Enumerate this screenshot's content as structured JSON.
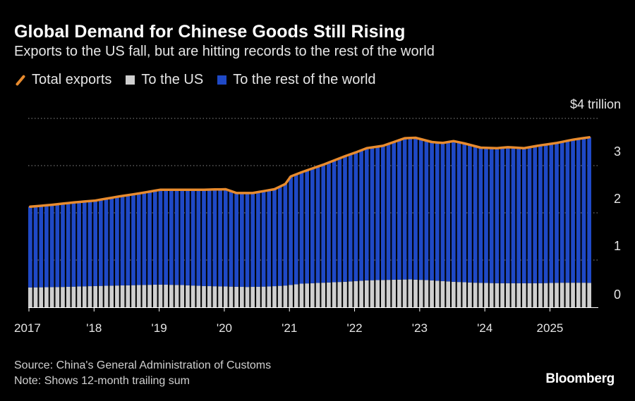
{
  "header": {
    "title": "Global Demand for Chinese Goods Still Rising",
    "subtitle": "Exports to the US fall, but are hitting records to the rest of the world"
  },
  "legend": [
    {
      "label": "Total exports",
      "color": "#e88b2e",
      "kind": "line"
    },
    {
      "label": "To the US",
      "color": "#cfcfcf",
      "kind": "bar"
    },
    {
      "label": "To the rest of the world",
      "color": "#1f49c6",
      "kind": "bar"
    }
  ],
  "footer": {
    "source": "Source: China's General Administration of Customs",
    "note": "Note: Shows 12-month trailing sum",
    "brand": "Bloomberg"
  },
  "chart_data": {
    "type": "bar",
    "stacked": true,
    "unit_label": "$4 trillion",
    "ylim": [
      0,
      4
    ],
    "y_ticks": [
      {
        "value": 0,
        "label": "0"
      },
      {
        "value": 1,
        "label": "1"
      },
      {
        "value": 2,
        "label": "2"
      },
      {
        "value": 3,
        "label": "3"
      },
      {
        "value": 4,
        "label": "$4 trillion"
      }
    ],
    "x_ticks": [
      "2017",
      "'18",
      "'19",
      "'20",
      "'21",
      "'22",
      "'23",
      "'24",
      "2025"
    ],
    "grid": true,
    "start_month": "2017-01",
    "end_month": "2025-08",
    "anchors": {
      "total": [
        [
          0,
          2.13
        ],
        [
          4,
          2.17
        ],
        [
          8,
          2.22
        ],
        [
          12,
          2.26
        ],
        [
          16,
          2.34
        ],
        [
          20,
          2.41
        ],
        [
          24,
          2.49
        ],
        [
          28,
          2.49
        ],
        [
          32,
          2.49
        ],
        [
          36,
          2.5
        ],
        [
          38,
          2.42
        ],
        [
          41,
          2.42
        ],
        [
          45,
          2.5
        ],
        [
          47,
          2.61
        ],
        [
          48,
          2.77
        ],
        [
          50,
          2.86
        ],
        [
          54,
          3.02
        ],
        [
          58,
          3.2
        ],
        [
          60,
          3.28
        ],
        [
          62,
          3.37
        ],
        [
          65,
          3.42
        ],
        [
          67,
          3.5
        ],
        [
          69,
          3.58
        ],
        [
          71,
          3.59
        ],
        [
          74,
          3.5
        ],
        [
          76,
          3.48
        ],
        [
          78,
          3.52
        ],
        [
          80,
          3.47
        ],
        [
          83,
          3.38
        ],
        [
          86,
          3.37
        ],
        [
          88,
          3.39
        ],
        [
          91,
          3.37
        ],
        [
          94,
          3.43
        ],
        [
          97,
          3.48
        ],
        [
          100,
          3.55
        ],
        [
          103,
          3.6
        ],
        [
          106,
          3.66
        ],
        [
          107,
          3.7
        ]
      ],
      "us": [
        [
          0,
          0.42
        ],
        [
          6,
          0.43
        ],
        [
          12,
          0.45
        ],
        [
          16,
          0.46
        ],
        [
          20,
          0.47
        ],
        [
          24,
          0.48
        ],
        [
          28,
          0.47
        ],
        [
          32,
          0.45
        ],
        [
          36,
          0.44
        ],
        [
          40,
          0.43
        ],
        [
          44,
          0.44
        ],
        [
          47,
          0.46
        ],
        [
          50,
          0.5
        ],
        [
          54,
          0.52
        ],
        [
          58,
          0.54
        ],
        [
          62,
          0.57
        ],
        [
          66,
          0.58
        ],
        [
          70,
          0.59
        ],
        [
          74,
          0.57
        ],
        [
          78,
          0.54
        ],
        [
          82,
          0.52
        ],
        [
          86,
          0.51
        ],
        [
          90,
          0.51
        ],
        [
          94,
          0.51
        ],
        [
          98,
          0.52
        ],
        [
          102,
          0.52
        ],
        [
          105,
          0.51
        ],
        [
          107,
          0.49
        ]
      ]
    }
  }
}
